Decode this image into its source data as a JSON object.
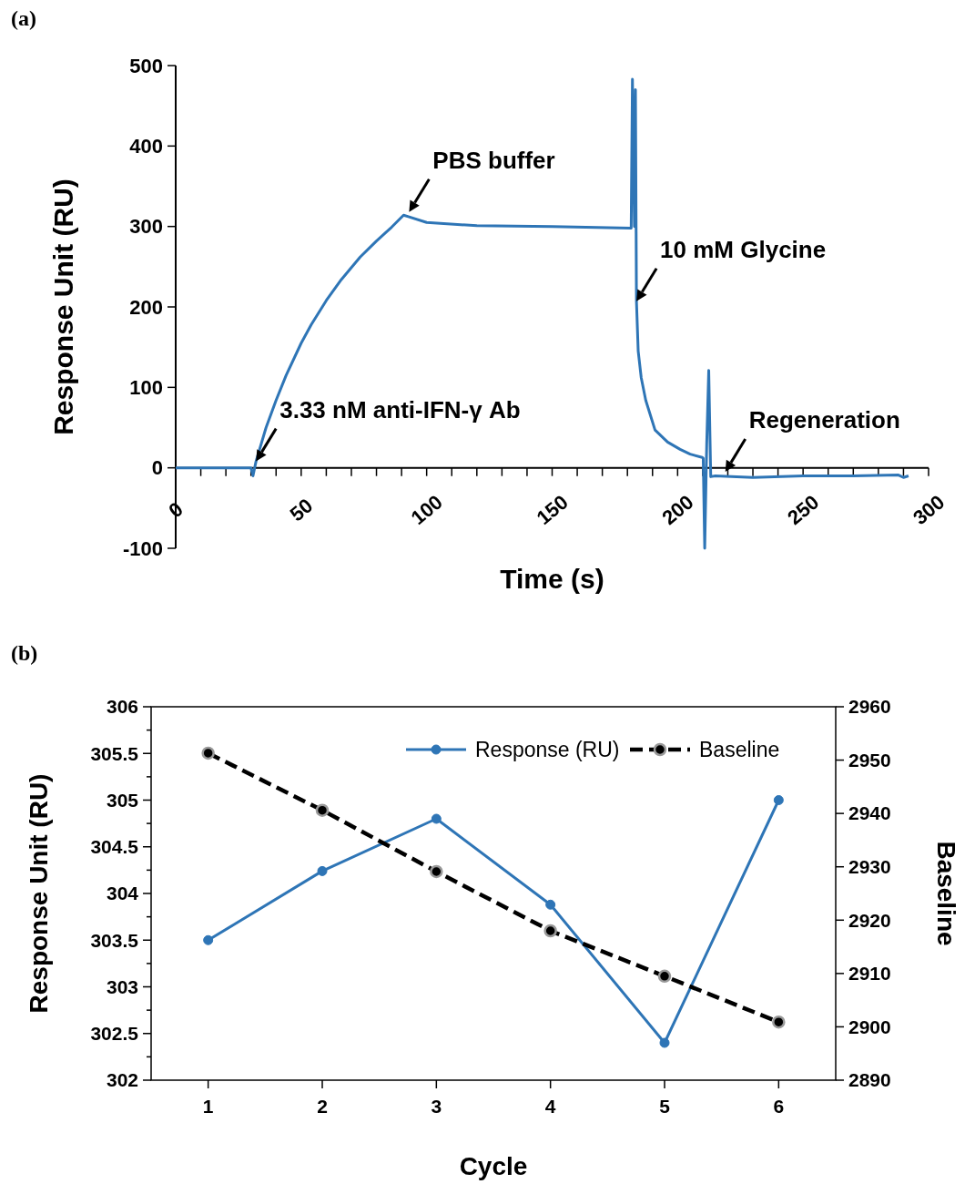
{
  "chart_data": [
    {
      "type": "line",
      "title": "(a)",
      "xlabel": "Time (s)",
      "ylabel": "Response Unit (RU)",
      "xlim": [
        0,
        300
      ],
      "ylim": [
        -100,
        500
      ],
      "xticks": [
        0,
        {
          "value": 10,
          "label": null
        },
        {
          "value": 20,
          "label": null
        },
        {
          "value": 30,
          "label": null
        },
        {
          "value": 40,
          "label": null
        },
        50,
        {
          "value": 60,
          "label": null
        },
        {
          "value": 70,
          "label": null
        },
        {
          "value": 80,
          "label": null
        },
        {
          "value": 90,
          "label": null
        },
        100,
        {
          "value": 110,
          "label": null
        },
        {
          "value": 120,
          "label": null
        },
        {
          "value": 130,
          "label": null
        },
        {
          "value": 140,
          "label": null
        },
        150,
        {
          "value": 160,
          "label": null
        },
        {
          "value": 170,
          "label": null
        },
        {
          "value": 180,
          "label": null
        },
        {
          "value": 190,
          "label": null
        },
        200,
        {
          "value": 210,
          "label": null
        },
        {
          "value": 220,
          "label": null
        },
        {
          "value": 230,
          "label": null
        },
        {
          "value": 240,
          "label": null
        },
        250,
        {
          "value": 260,
          "label": null
        },
        {
          "value": 270,
          "label": null
        },
        {
          "value": 280,
          "label": null
        },
        {
          "value": 290,
          "label": null
        },
        300
      ],
      "yticks": [
        -100,
        0,
        100,
        200,
        300,
        400,
        500
      ],
      "series": [
        {
          "color": "#2e75b6",
          "x": [
            0,
            30,
            30.8,
            32,
            36,
            40,
            44,
            50,
            54,
            60,
            66,
            73.5,
            80,
            86,
            90.8,
            93,
            100,
            120,
            150,
            181.5,
            182,
            182.8,
            183.2,
            183.6,
            184.3,
            185.5,
            187.3,
            191,
            196,
            201,
            205,
            209.8,
            210.2,
            210.8,
            211.6,
            212.4,
            213.2,
            215,
            230,
            250,
            270,
            288,
            290,
            292
          ],
          "values": [
            0,
            0,
            -10,
            8,
            50,
            84,
            115,
            155,
            178,
            208,
            234,
            262,
            282,
            299,
            314,
            312,
            305,
            301,
            300,
            298,
            483,
            300,
            470,
            207,
            145,
            112,
            84,
            47,
            32,
            23,
            17,
            13,
            12,
            -100,
            30,
            121,
            -11,
            -10,
            -12,
            -10,
            -10,
            -9,
            -12,
            -10
          ]
        }
      ],
      "annotations": [
        {
          "text": "3.33 nM anti-IFN-γ Ab",
          "x": 32,
          "y": 8
        },
        {
          "text": "PBS buffer",
          "x": 93,
          "y": 318
        },
        {
          "text": "10 mM Glycine",
          "x": 183.6,
          "y": 207
        },
        {
          "text": "Regeneration",
          "x": 219,
          "y": -5
        }
      ]
    },
    {
      "type": "line",
      "title": "(b)",
      "xlabel": "Cycle",
      "ylabel": "Response Unit (RU)",
      "y2label": "Baseline",
      "categories": [
        "1",
        "2",
        "3",
        "4",
        "5",
        "6"
      ],
      "ylim": [
        302,
        306
      ],
      "yticks": [
        302,
        {
          "value": 302.25,
          "label": null
        },
        302.5,
        {
          "value": 302.75,
          "label": null
        },
        303,
        {
          "value": 303.25,
          "label": null
        },
        303.5,
        {
          "value": 303.75,
          "label": null
        },
        304,
        {
          "value": 304.25,
          "label": null
        },
        304.5,
        {
          "value": 304.75,
          "label": null
        },
        305,
        {
          "value": 305.25,
          "label": null
        },
        305.5,
        {
          "value": 305.75,
          "label": null
        },
        306
      ],
      "y2lim": [
        2890,
        2960
      ],
      "y2ticks": [
        2890,
        2900,
        2910,
        2920,
        2930,
        2940,
        2950,
        2960
      ],
      "legend": "top right",
      "marker": "circle",
      "series": [
        {
          "name": "Response (RU)",
          "color": "#2e75b6",
          "values": [
            303.5,
            304.24,
            304.8,
            303.88,
            302.4,
            305.0
          ],
          "line_style": "solid"
        },
        {
          "name": "Baseline",
          "color": "#000000",
          "axis": "y2",
          "values": [
            2951.3,
            2940.6,
            2929.1,
            2918.0,
            2909.5,
            2900.9
          ],
          "line_style": "dashed"
        }
      ]
    }
  ]
}
